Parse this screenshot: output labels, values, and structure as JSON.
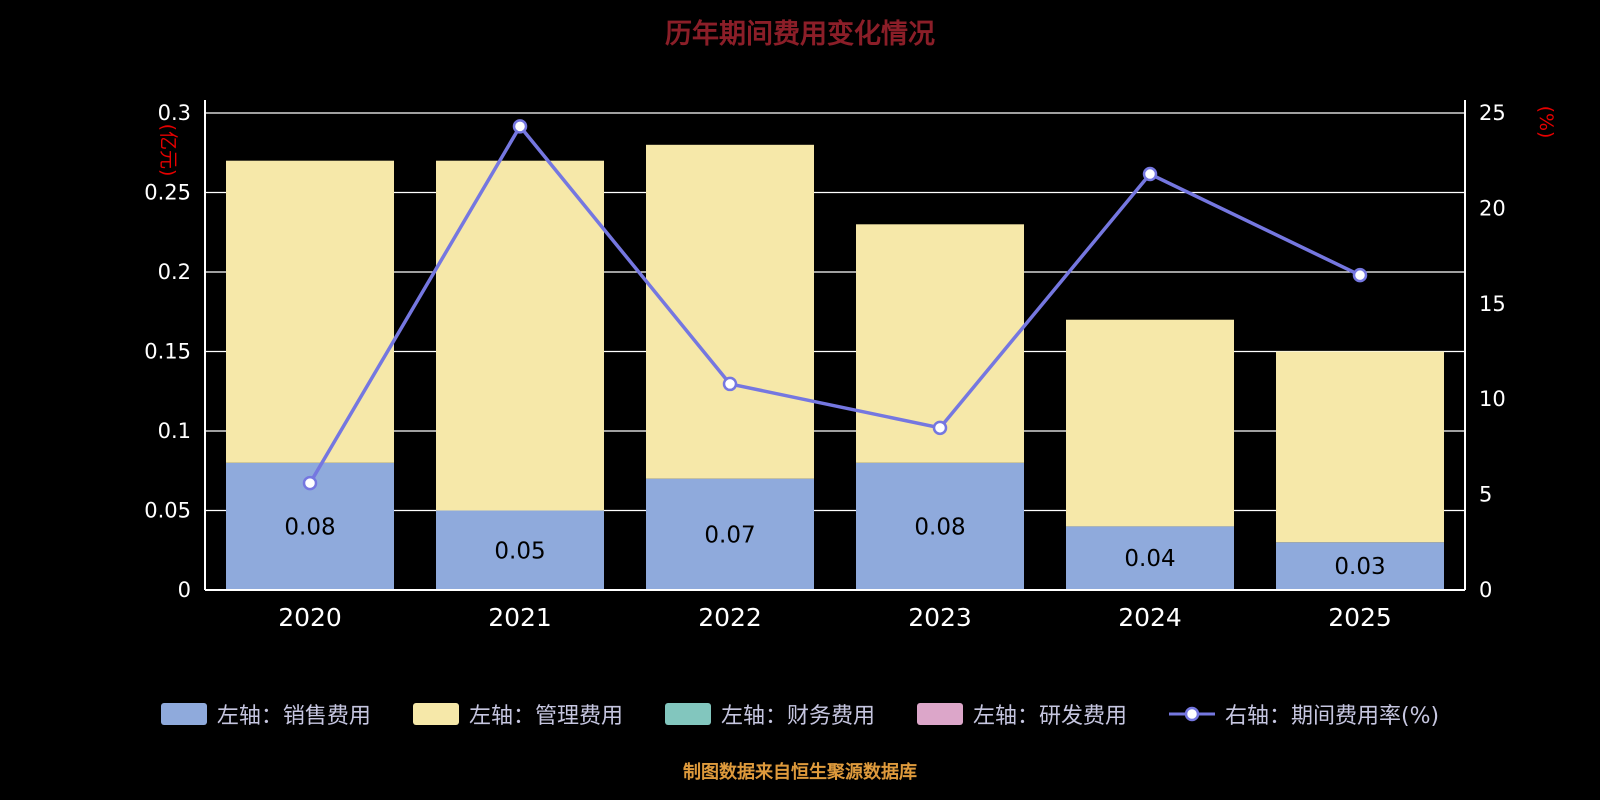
{
  "title": "历年期间费用变化情况",
  "subtitle": "制图数据来自恒生聚源数据库",
  "left_axis_unit": "(亿元)",
  "right_axis_unit": "(%)",
  "colors": {
    "background": "#000000",
    "grid": "#FFFFFF",
    "axis": "#FFFFFF",
    "tick_text": "#FFFFFF",
    "x_label_text": "#FFFFFF",
    "bar_label": "#000000",
    "title": "#8B1E28",
    "subtitle": "#DE9A3C",
    "axis_unit": "#E60000",
    "legend_text": "#C6C6E0"
  },
  "chart_data": {
    "type": "bar",
    "stacked": true,
    "grid": true,
    "legend_position": "bottom",
    "categories": [
      "2020",
      "2021",
      "2022",
      "2023",
      "2024",
      "2025"
    ],
    "left_axis": {
      "min": 0,
      "max": 0.3,
      "step": 0.05,
      "ticks": [
        "0",
        "0.05",
        "0.1",
        "0.15",
        "0.2",
        "0.25",
        "0.3"
      ]
    },
    "right_axis": {
      "min": 0,
      "max": 25,
      "step": 5,
      "ticks": [
        "0",
        "5",
        "10",
        "15",
        "20",
        "25"
      ]
    },
    "series": [
      {
        "name": "左轴：销售费用",
        "type": "bar",
        "axis": "left",
        "color": "#8FAADC",
        "values": [
          0.08,
          0.05,
          0.07,
          0.08,
          0.04,
          0.03
        ],
        "labels": [
          "0.08",
          "0.05",
          "0.07",
          "0.08",
          "0.04",
          "0.03"
        ]
      },
      {
        "name": "左轴：管理费用",
        "type": "bar",
        "axis": "left",
        "color": "#F6E8A9",
        "values": [
          0.19,
          0.22,
          0.21,
          0.15,
          0.13,
          0.12
        ]
      },
      {
        "name": "左轴：财务费用",
        "type": "bar",
        "axis": "left",
        "color": "#82C6BE",
        "values": [
          0,
          0,
          0,
          0,
          0,
          0
        ]
      },
      {
        "name": "左轴：研发费用",
        "type": "bar",
        "axis": "left",
        "color": "#DCA6C9",
        "values": [
          0,
          0,
          0,
          0,
          0,
          0
        ]
      },
      {
        "name": "右轴：期间费用率(%)",
        "type": "line",
        "axis": "right",
        "color": "#7577E0",
        "values": [
          5.6,
          24.3,
          10.8,
          8.5,
          21.8,
          16.5
        ]
      }
    ]
  }
}
